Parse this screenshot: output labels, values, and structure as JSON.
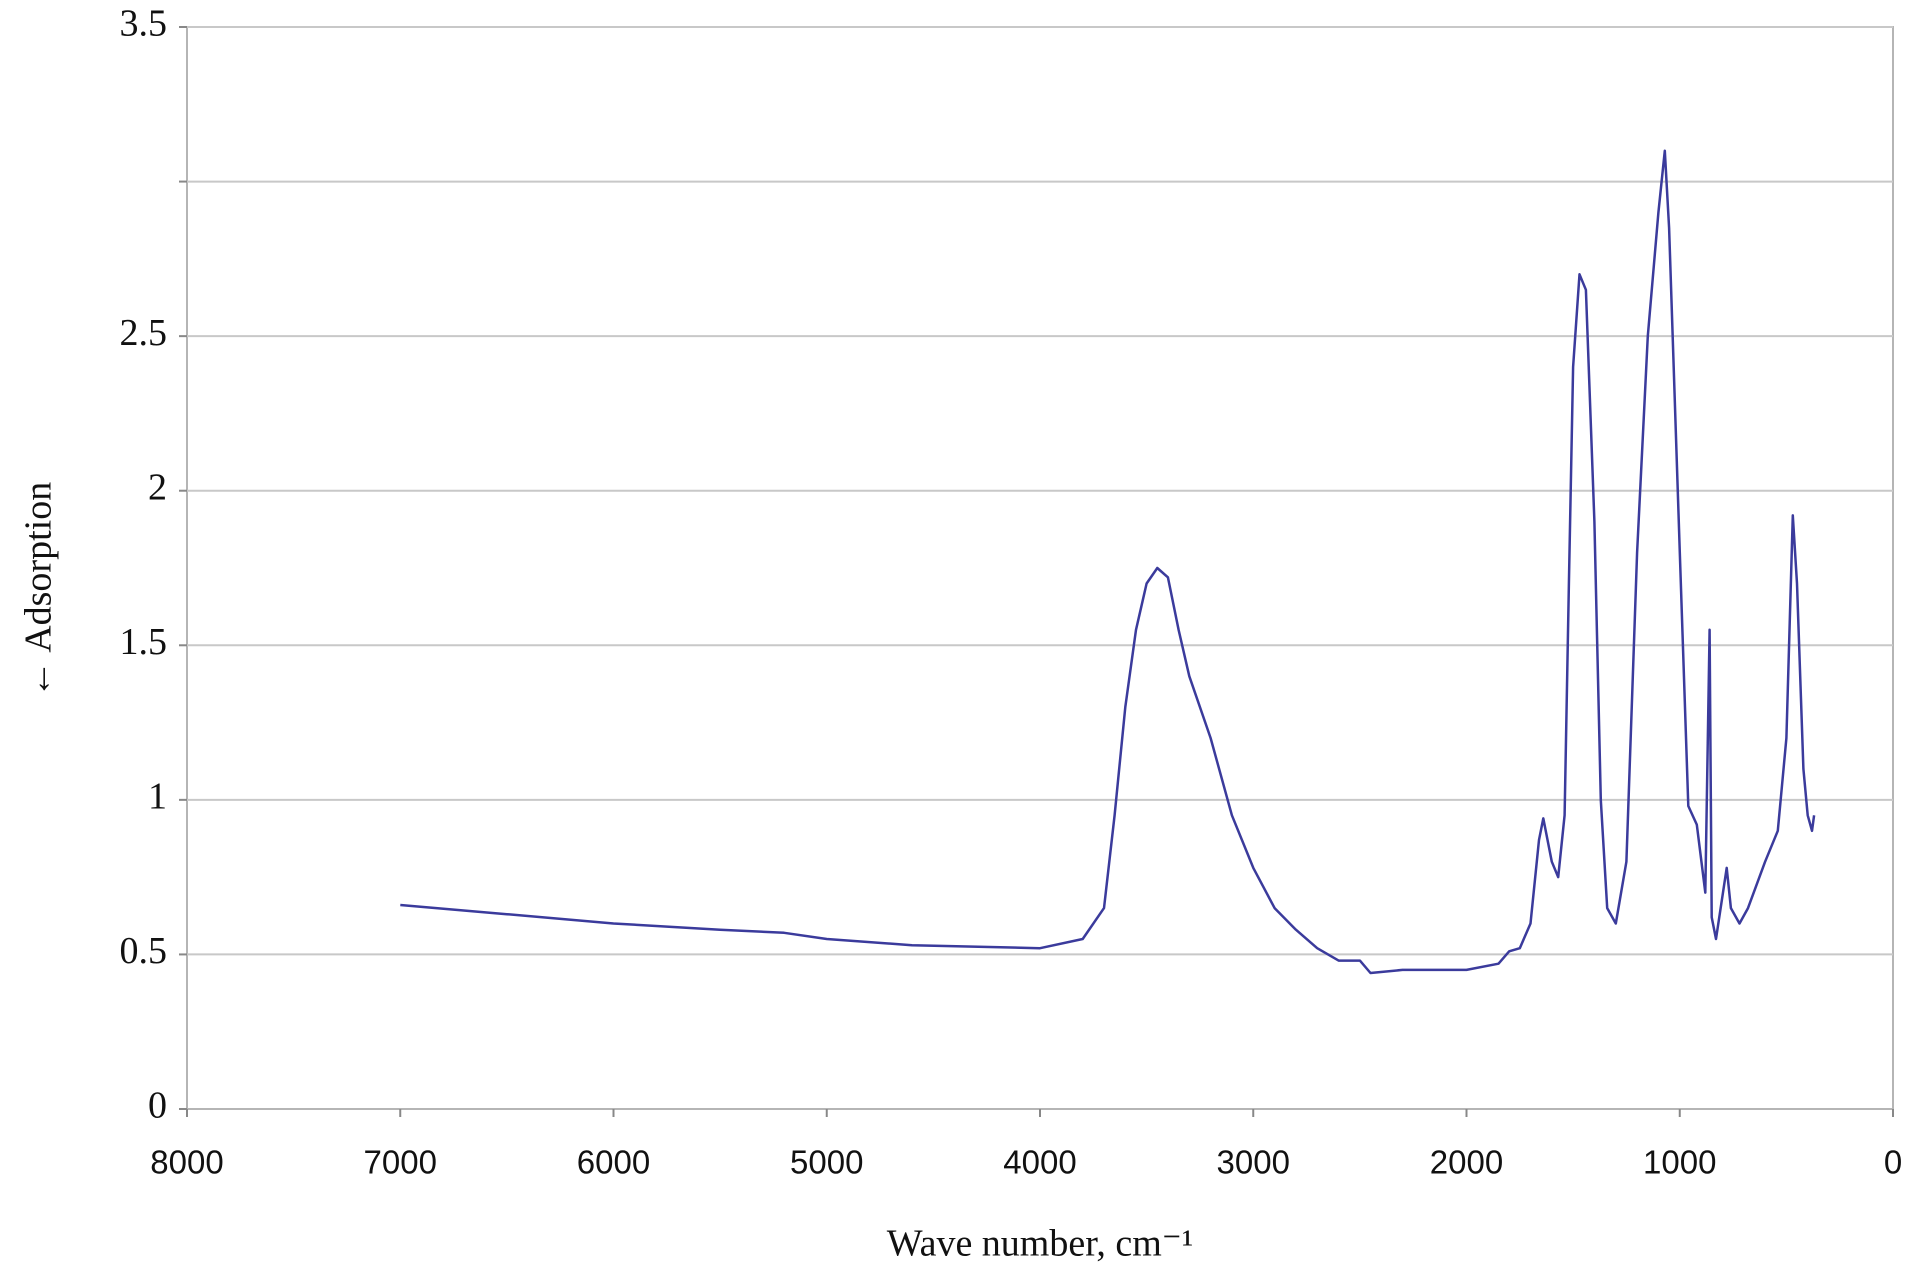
{
  "chart_data": {
    "type": "line",
    "x_label": "Wave number, cm⁻¹",
    "y_label": "← Adsorption",
    "xlim": [
      8000,
      0
    ],
    "xticks": [
      8000,
      7000,
      6000,
      5000,
      4000,
      3000,
      2000,
      1000,
      0
    ],
    "ylim": [
      0,
      3.5
    ],
    "yticks": [
      0,
      0.5,
      1,
      1.5,
      2,
      2.5,
      {
        "value": 3,
        "label": null
      },
      3.5
    ],
    "grid": true,
    "series": [
      {
        "color": "#3b3b9c",
        "x": [
          7000,
          6500,
          6000,
          5500,
          5200,
          5000,
          4600,
          4000,
          3800,
          3700,
          3650,
          3600,
          3550,
          3500,
          3450,
          3400,
          3350,
          3300,
          3200,
          3100,
          3000,
          2900,
          2800,
          2700,
          2600,
          2500,
          2450,
          2300,
          2000,
          1850,
          1800,
          1750,
          1700,
          1660,
          1640,
          1600,
          1570,
          1540,
          1520,
          1500,
          1470,
          1440,
          1400,
          1370,
          1340,
          1300,
          1250,
          1200,
          1150,
          1100,
          1070,
          1050,
          1000,
          960,
          920,
          880,
          860,
          850,
          830,
          780,
          760,
          720,
          680,
          600,
          540,
          500,
          470,
          450,
          420,
          400,
          380,
          370
        ],
        "values": [
          0.66,
          0.63,
          0.6,
          0.58,
          0.57,
          0.55,
          0.53,
          0.52,
          0.55,
          0.65,
          0.95,
          1.3,
          1.55,
          1.7,
          1.75,
          1.72,
          1.55,
          1.4,
          1.2,
          0.95,
          0.78,
          0.65,
          0.58,
          0.52,
          0.48,
          0.48,
          0.44,
          0.45,
          0.45,
          0.47,
          0.51,
          0.52,
          0.6,
          0.87,
          0.94,
          0.8,
          0.75,
          0.95,
          1.7,
          2.4,
          2.7,
          2.65,
          1.9,
          1.0,
          0.65,
          0.6,
          0.8,
          1.8,
          2.5,
          2.9,
          3.1,
          2.85,
          1.8,
          0.98,
          0.92,
          0.7,
          1.55,
          0.62,
          0.55,
          0.78,
          0.65,
          0.6,
          0.65,
          0.8,
          0.9,
          1.2,
          1.92,
          1.7,
          1.1,
          0.95,
          0.9,
          0.95
        ]
      }
    ]
  }
}
